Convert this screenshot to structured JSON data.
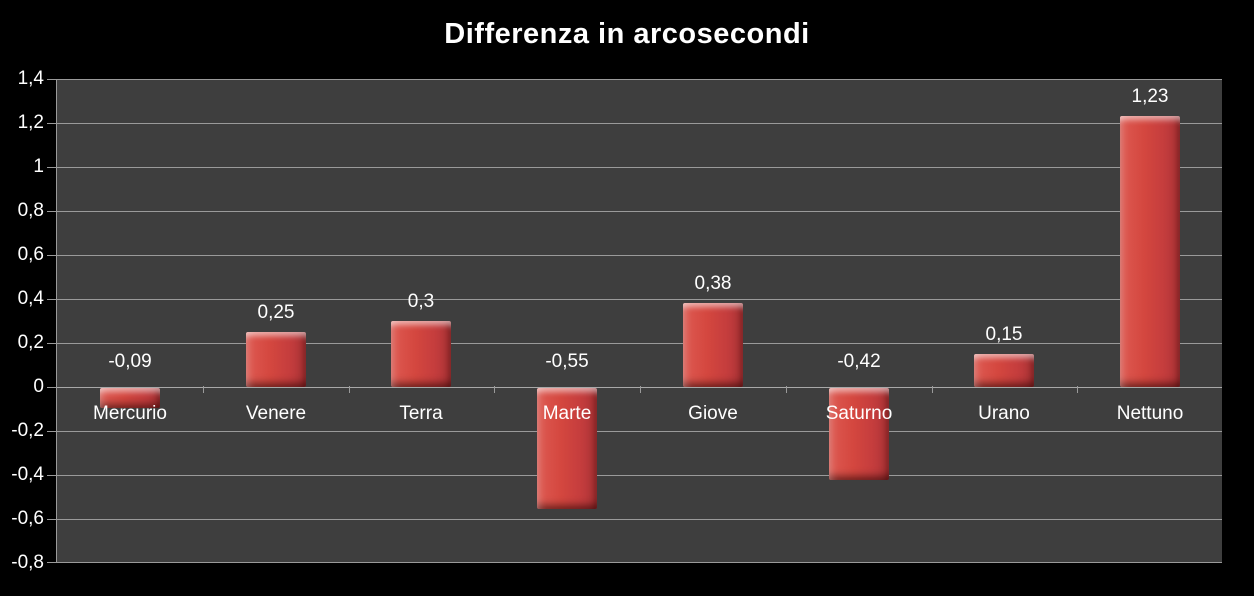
{
  "chart_data": {
    "type": "bar",
    "title": "Differenza in arcosecondi",
    "categories": [
      "Mercurio",
      "Venere",
      "Terra",
      "Marte",
      "Giove",
      "Saturno",
      "Urano",
      "Nettuno"
    ],
    "values": [
      -0.09,
      0.25,
      0.3,
      -0.55,
      0.38,
      -0.42,
      0.15,
      1.23
    ],
    "value_labels": [
      "-0,09",
      "0,25",
      "0,3",
      "-0,55",
      "0,38",
      "-0,42",
      "0,15",
      "1,23"
    ],
    "xlabel": "",
    "ylabel": "",
    "ylim": [
      -0.8,
      1.4
    ],
    "ytick_step": 0.2,
    "ytick_labels": [
      "1,4",
      "1,2",
      "1",
      "0,8",
      "0,6",
      "0,4",
      "0,2",
      "0",
      "-0,2",
      "-0,4",
      "-0,6",
      "-0,8"
    ],
    "grid": true,
    "legend": false,
    "decimal_separator": ",",
    "colors": {
      "background": "#000000",
      "plot_background": "#3e3e3e",
      "gridline": "#9a9a9a",
      "bar": "#cc4140",
      "bar_highlight": "#e8685e",
      "bar_shadow": "#8e2d2e",
      "text": "#ffffff"
    }
  }
}
